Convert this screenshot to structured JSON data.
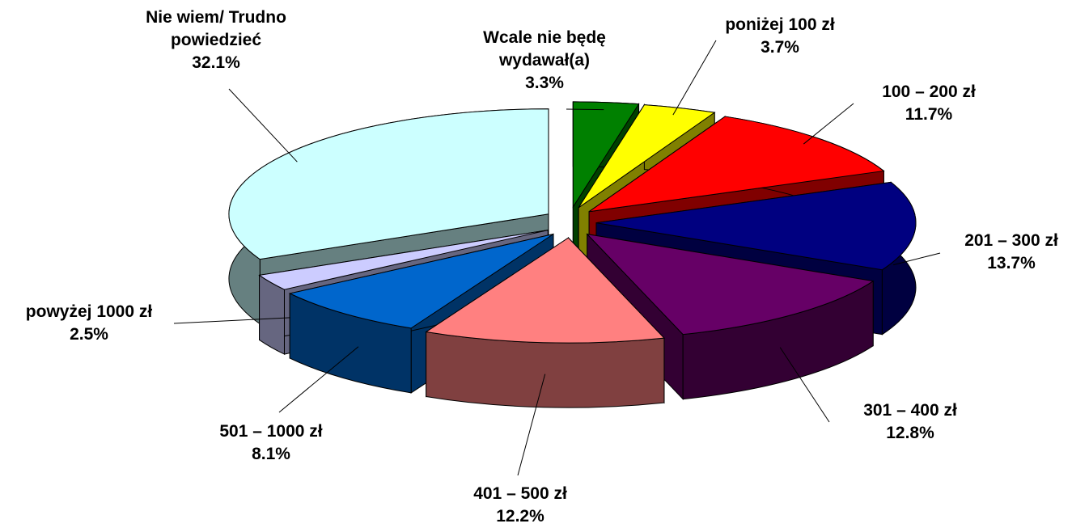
{
  "chart_data": {
    "type": "pie",
    "categories": [
      "Wcale nie będę wydawał(a)",
      "poniżej 100 zł",
      "100 – 200 zł",
      "201 – 300 zł",
      "301 – 400 zł",
      "401 – 500 zł",
      "501 – 1000 zł",
      "powyżej 1000 zł",
      "Nie wiem/ Trudno powiedzieć"
    ],
    "values": [
      3.3,
      3.7,
      11.7,
      13.7,
      12.8,
      12.2,
      8.1,
      2.5,
      32.1
    ],
    "value_labels": [
      "3.3%",
      "3.7%",
      "11.7%",
      "13.7%",
      "12.8%",
      "12.2%",
      "8.1%",
      "2.5%",
      "32.1%"
    ],
    "colors": [
      "#008000",
      "#ffff00",
      "#ff0000",
      "#000080",
      "#660066",
      "#ff8080",
      "#0066cc",
      "#ccccff",
      "#ccffff"
    ]
  }
}
